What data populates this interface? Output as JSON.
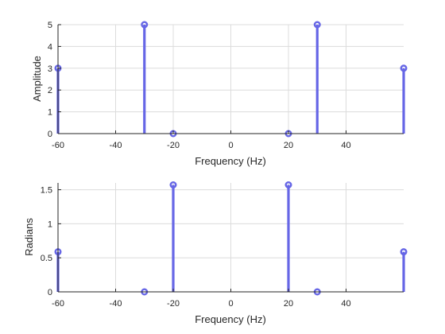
{
  "figure": {
    "background": "#ffffff",
    "axes_color": "#262626",
    "grid_color": "#dcdcdc",
    "stem_color": "#6666e6"
  },
  "chart_data": [
    {
      "type": "stem",
      "title": "",
      "xlabel": "Frequency (Hz)",
      "ylabel": "Amplitude",
      "xlim": [
        -60,
        60
      ],
      "ylim": [
        0,
        5
      ],
      "xticks": [
        -60,
        -40,
        -20,
        0,
        20,
        40
      ],
      "yticks": [
        0,
        1,
        2,
        3,
        4,
        5
      ],
      "grid": true,
      "series": [
        {
          "x": [
            -60,
            -30,
            -20,
            20,
            30,
            60
          ],
          "y": [
            3,
            5,
            0,
            0,
            5,
            3
          ]
        }
      ]
    },
    {
      "type": "stem",
      "title": "",
      "xlabel": "Frequency (Hz)",
      "ylabel": "Radians",
      "xlim": [
        -60,
        60
      ],
      "ylim": [
        0,
        1.6
      ],
      "xticks": [
        -60,
        -40,
        -20,
        0,
        20,
        40
      ],
      "yticks": [
        0,
        0.5,
        1,
        1.5
      ],
      "grid": true,
      "series": [
        {
          "x": [
            -60,
            -30,
            -20,
            20,
            30,
            60
          ],
          "y": [
            0.5878,
            0,
            1.5708,
            1.5708,
            0,
            0.5878
          ]
        }
      ]
    }
  ]
}
